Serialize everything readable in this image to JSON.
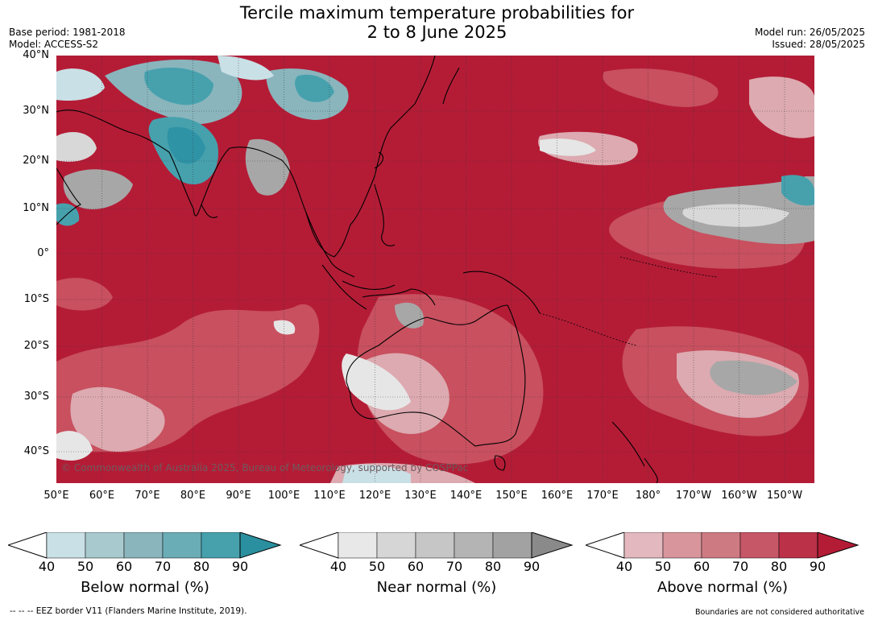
{
  "header": {
    "title_line1": "Tercile maximum temperature probabilities for",
    "title_line2": "2 to 8 June 2025",
    "base_period": "Base period: 1981-2018",
    "model": "Model: ACCESS-S2",
    "model_run": "Model run: 26/05/2025",
    "issued": "Issued: 28/05/2025"
  },
  "map": {
    "copyright": "© Commonwealth of Australia 2025, Bureau of Meteorology, supported by COSPPac",
    "lat_labels": [
      "40°N",
      "30°N",
      "20°N",
      "10°N",
      "0°",
      "10°S",
      "20°S",
      "30°S",
      "40°S"
    ],
    "lon_labels": [
      "50°E",
      "60°E",
      "70°E",
      "80°E",
      "90°E",
      "100°E",
      "110°E",
      "120°E",
      "130°E",
      "140°E",
      "150°E",
      "160°E",
      "170°E",
      "180°",
      "170°W",
      "160°W",
      "150°W"
    ],
    "dominant_category": "Above normal",
    "colors": {
      "above_strong": "#b41c36",
      "above_mid": "#c8505f",
      "above_light": "#dcaab0",
      "near": "#a7a7a7",
      "below": "#2f93a6",
      "land_outline": "#000000"
    }
  },
  "colorbars": [
    {
      "title": "Below normal (%)",
      "ticks": [
        "40",
        "50",
        "60",
        "70",
        "80",
        "90"
      ],
      "colors": [
        "#ffffff",
        "#c9e0e6",
        "#a8c9cd",
        "#8ab5bd",
        "#6badb6",
        "#46a1ad",
        "#2a8f9e"
      ]
    },
    {
      "title": "Near normal (%)",
      "ticks": [
        "40",
        "50",
        "60",
        "70",
        "80",
        "90"
      ],
      "colors": [
        "#ffffff",
        "#e8e8e8",
        "#d6d6d6",
        "#c6c6c6",
        "#b4b4b4",
        "#a2a2a2",
        "#8a8a8a"
      ]
    },
    {
      "title": "Above normal (%)",
      "ticks": [
        "40",
        "50",
        "60",
        "70",
        "80",
        "90"
      ],
      "colors": [
        "#ffffff",
        "#e3b8be",
        "#d8959c",
        "#ce7a82",
        "#c65767",
        "#bb3148",
        "#b41c36"
      ]
    }
  ],
  "footer": {
    "eez_note": "--  --  -- EEZ border V11 (Flanders Marine Institute, 2019).",
    "boundaries_note": "Boundaries are not considered authoritative"
  }
}
